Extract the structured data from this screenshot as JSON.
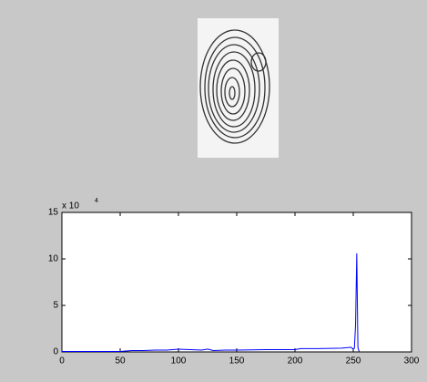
{
  "chart_data": {
    "type": "line",
    "y_multiplier": {
      "base": "x 10",
      "exponent": "4"
    },
    "x": [
      0,
      50,
      55,
      60,
      70,
      80,
      90,
      100,
      110,
      120,
      125,
      130,
      140,
      150,
      175,
      200,
      205,
      220,
      240,
      248,
      250,
      251,
      252,
      253,
      254,
      255
    ],
    "series": [
      {
        "color": "#0000ff",
        "values": [
          0.05,
          0.05,
          0.1,
          0.15,
          0.15,
          0.2,
          0.2,
          0.3,
          0.25,
          0.2,
          0.3,
          0.15,
          0.2,
          0.2,
          0.25,
          0.25,
          0.35,
          0.35,
          0.4,
          0.5,
          0.3,
          0.4,
          3,
          10.6,
          0.5,
          0.05
        ]
      }
    ],
    "xlim": [
      0,
      300
    ],
    "xticks": [
      0,
      50,
      100,
      150,
      200,
      250,
      300
    ],
    "ylim": [
      0,
      15
    ],
    "yticks": [
      0,
      5,
      10,
      15
    ],
    "grid": false
  }
}
